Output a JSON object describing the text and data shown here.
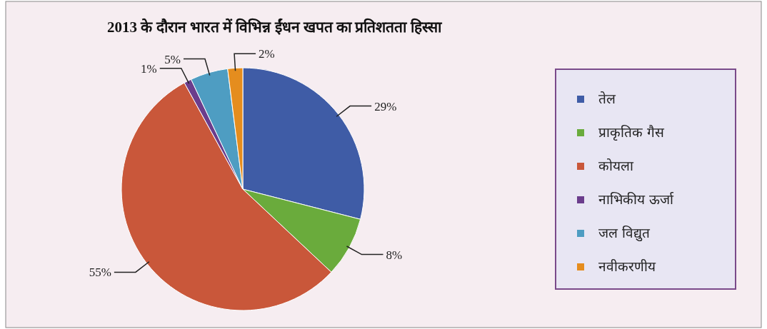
{
  "chart_data": {
    "type": "pie",
    "title": "2013 के दौरान भारत में विभिन्न ईंधन खपत का प्रतिशतता हिस्सा",
    "categories": [
      "तेल",
      "प्राकृतिक गैस",
      "कोयला",
      "नाभिकीय ऊर्जा",
      "जल विद्युत",
      "नवीकरणीय"
    ],
    "values": [
      29,
      8,
      55,
      1,
      5,
      2
    ],
    "value_labels": [
      "29%",
      "8%",
      "55%",
      "1%",
      "5%",
      "2%"
    ],
    "colors": [
      "#3f5ca6",
      "#6aab3c",
      "#c9573a",
      "#6b3d8c",
      "#4e9dc2",
      "#e58d1e"
    ],
    "legend": "right"
  }
}
